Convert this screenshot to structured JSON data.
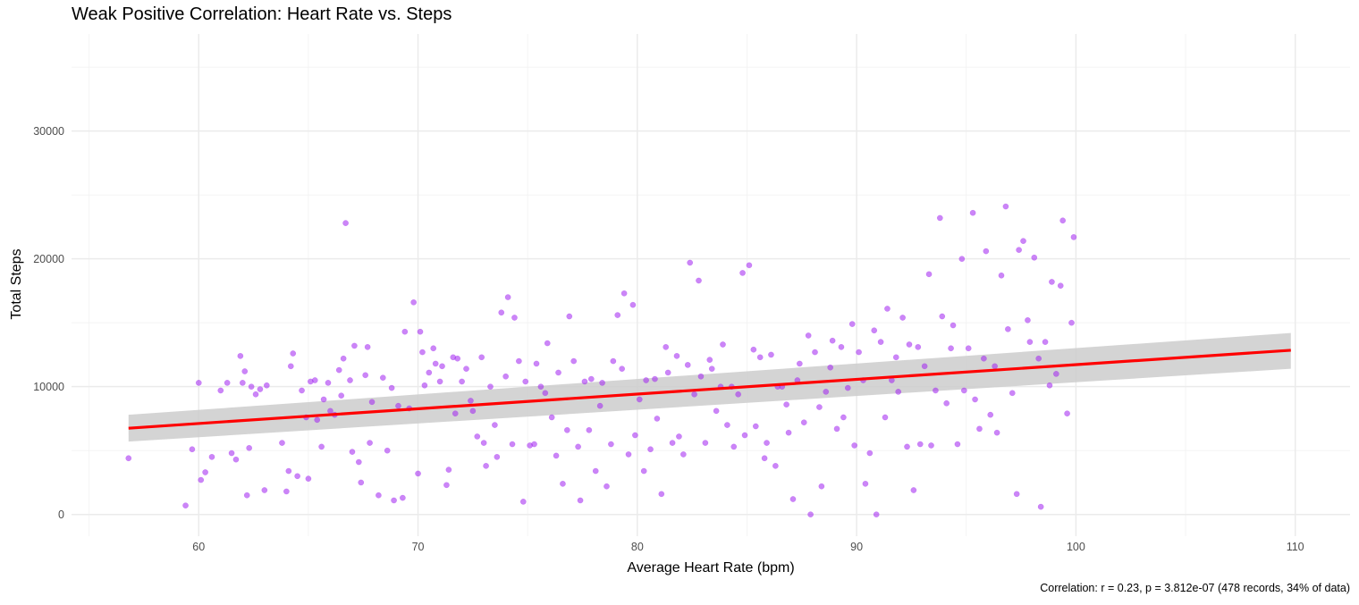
{
  "chart_data": {
    "type": "scatter",
    "title": "Weak Positive Correlation: Heart Rate vs. Steps",
    "caption": "Correlation: r = 0.23, p = 3.812e-07 (478 records, 34% of data)",
    "xlabel": "Average Heart Rate (bpm)",
    "ylabel": "Total Steps",
    "xlim": [
      54.2,
      112.5
    ],
    "ylim": [
      -1700,
      37600
    ],
    "x_ticks": [
      60,
      70,
      80,
      90,
      100,
      110
    ],
    "y_ticks": [
      0,
      10000,
      20000,
      30000
    ],
    "x_tick_labels": [
      "60",
      "70",
      "80",
      "90",
      "100",
      "110"
    ],
    "y_tick_labels": [
      "0",
      "10000",
      "20000",
      "30000"
    ],
    "grid": true,
    "point_color": "#a020f0",
    "trend_color": "#ff0000",
    "band_color": "#cccccc",
    "trend_line": {
      "x_start": 56.8,
      "y_start": 6750,
      "x_end": 109.8,
      "y_end": 12850,
      "ci_start": [
        5700,
        7800
      ],
      "ci_end": [
        11400,
        14200
      ]
    },
    "series": [
      {
        "points": [
          [
            56.8,
            4400
          ],
          [
            59.4,
            700
          ],
          [
            59.7,
            5100
          ],
          [
            60.0,
            10300
          ],
          [
            60.1,
            2700
          ],
          [
            60.3,
            3300
          ],
          [
            60.6,
            4500
          ],
          [
            61.0,
            9700
          ],
          [
            61.3,
            10300
          ],
          [
            61.5,
            4800
          ],
          [
            61.7,
            4300
          ],
          [
            61.9,
            12400
          ],
          [
            62.0,
            10300
          ],
          [
            62.1,
            11200
          ],
          [
            62.2,
            1500
          ],
          [
            62.3,
            5200
          ],
          [
            62.4,
            10000
          ],
          [
            62.6,
            9400
          ],
          [
            62.8,
            9800
          ],
          [
            63.0,
            1900
          ],
          [
            63.1,
            10100
          ],
          [
            63.8,
            5600
          ],
          [
            64.0,
            1800
          ],
          [
            64.1,
            3400
          ],
          [
            64.2,
            11600
          ],
          [
            64.3,
            12600
          ],
          [
            64.5,
            3000
          ],
          [
            64.7,
            9700
          ],
          [
            64.9,
            7600
          ],
          [
            65.0,
            2800
          ],
          [
            65.1,
            10400
          ],
          [
            65.3,
            10500
          ],
          [
            65.4,
            7400
          ],
          [
            65.6,
            5300
          ],
          [
            65.7,
            9000
          ],
          [
            65.9,
            10300
          ],
          [
            66.0,
            8100
          ],
          [
            66.2,
            7800
          ],
          [
            66.4,
            11300
          ],
          [
            66.5,
            9300
          ],
          [
            66.6,
            12200
          ],
          [
            66.7,
            22800
          ],
          [
            66.9,
            10500
          ],
          [
            67.0,
            4900
          ],
          [
            67.1,
            13200
          ],
          [
            67.3,
            4100
          ],
          [
            67.4,
            2500
          ],
          [
            67.6,
            10900
          ],
          [
            67.7,
            13100
          ],
          [
            67.8,
            5600
          ],
          [
            67.9,
            8800
          ],
          [
            68.2,
            1500
          ],
          [
            68.4,
            10700
          ],
          [
            68.6,
            5000
          ],
          [
            68.8,
            9900
          ],
          [
            68.9,
            1100
          ],
          [
            69.1,
            8500
          ],
          [
            69.3,
            1300
          ],
          [
            69.4,
            14300
          ],
          [
            69.6,
            8300
          ],
          [
            69.8,
            16600
          ],
          [
            70.0,
            3200
          ],
          [
            70.1,
            14300
          ],
          [
            70.2,
            12700
          ],
          [
            70.3,
            10100
          ],
          [
            70.5,
            11100
          ],
          [
            70.7,
            13000
          ],
          [
            70.8,
            11800
          ],
          [
            71.0,
            10400
          ],
          [
            71.1,
            11600
          ],
          [
            71.3,
            2300
          ],
          [
            71.4,
            3500
          ],
          [
            71.6,
            12300
          ],
          [
            71.7,
            7900
          ],
          [
            71.8,
            12200
          ],
          [
            72.0,
            10400
          ],
          [
            72.2,
            11400
          ],
          [
            72.4,
            8900
          ],
          [
            72.5,
            8100
          ],
          [
            72.7,
            6100
          ],
          [
            72.9,
            12300
          ],
          [
            73.0,
            5600
          ],
          [
            73.1,
            3800
          ],
          [
            73.3,
            10000
          ],
          [
            73.5,
            7000
          ],
          [
            73.6,
            4500
          ],
          [
            73.8,
            15800
          ],
          [
            74.0,
            10800
          ],
          [
            74.1,
            17000
          ],
          [
            74.3,
            5500
          ],
          [
            74.4,
            15400
          ],
          [
            74.6,
            12000
          ],
          [
            74.8,
            1000
          ],
          [
            74.9,
            10400
          ],
          [
            75.1,
            5400
          ],
          [
            75.3,
            5500
          ],
          [
            75.4,
            11800
          ],
          [
            75.6,
            10000
          ],
          [
            75.8,
            9500
          ],
          [
            75.9,
            13400
          ],
          [
            76.1,
            7600
          ],
          [
            76.3,
            4600
          ],
          [
            76.4,
            11100
          ],
          [
            76.6,
            2400
          ],
          [
            76.8,
            6600
          ],
          [
            76.9,
            15500
          ],
          [
            77.1,
            12000
          ],
          [
            77.3,
            5300
          ],
          [
            77.4,
            1100
          ],
          [
            77.6,
            10400
          ],
          [
            77.8,
            6600
          ],
          [
            77.9,
            10600
          ],
          [
            78.1,
            3400
          ],
          [
            78.3,
            8500
          ],
          [
            78.4,
            10300
          ],
          [
            78.6,
            2200
          ],
          [
            78.8,
            5500
          ],
          [
            78.9,
            12000
          ],
          [
            79.1,
            15600
          ],
          [
            79.3,
            11400
          ],
          [
            79.4,
            17300
          ],
          [
            79.6,
            4700
          ],
          [
            79.8,
            16400
          ],
          [
            79.9,
            6200
          ],
          [
            80.1,
            9000
          ],
          [
            80.3,
            3400
          ],
          [
            80.4,
            10500
          ],
          [
            80.6,
            5100
          ],
          [
            80.8,
            10600
          ],
          [
            80.9,
            7500
          ],
          [
            81.1,
            1600
          ],
          [
            81.3,
            13100
          ],
          [
            81.4,
            11100
          ],
          [
            81.6,
            5600
          ],
          [
            81.8,
            12400
          ],
          [
            81.9,
            6100
          ],
          [
            82.1,
            4700
          ],
          [
            82.3,
            11700
          ],
          [
            82.4,
            19700
          ],
          [
            82.6,
            9400
          ],
          [
            82.8,
            18300
          ],
          [
            82.9,
            10800
          ],
          [
            83.1,
            5600
          ],
          [
            83.3,
            12100
          ],
          [
            83.4,
            11400
          ],
          [
            83.6,
            8100
          ],
          [
            83.8,
            10000
          ],
          [
            83.9,
            13300
          ],
          [
            84.1,
            7000
          ],
          [
            84.3,
            10000
          ],
          [
            84.4,
            5300
          ],
          [
            84.6,
            9400
          ],
          [
            84.8,
            18900
          ],
          [
            84.9,
            6200
          ],
          [
            85.1,
            19500
          ],
          [
            85.3,
            12900
          ],
          [
            85.4,
            6900
          ],
          [
            85.6,
            12300
          ],
          [
            85.8,
            4400
          ],
          [
            85.9,
            5600
          ],
          [
            86.1,
            12500
          ],
          [
            86.3,
            3800
          ],
          [
            86.4,
            10000
          ],
          [
            86.6,
            10000
          ],
          [
            86.8,
            8600
          ],
          [
            86.9,
            6400
          ],
          [
            87.1,
            1200
          ],
          [
            87.3,
            10500
          ],
          [
            87.4,
            11800
          ],
          [
            87.6,
            7200
          ],
          [
            87.8,
            14000
          ],
          [
            87.9,
            0
          ],
          [
            88.1,
            12700
          ],
          [
            88.3,
            8400
          ],
          [
            88.4,
            2200
          ],
          [
            88.6,
            9600
          ],
          [
            88.8,
            11500
          ],
          [
            88.9,
            13600
          ],
          [
            89.1,
            6700
          ],
          [
            89.3,
            13100
          ],
          [
            89.4,
            7600
          ],
          [
            89.6,
            9900
          ],
          [
            89.8,
            14900
          ],
          [
            89.9,
            5400
          ],
          [
            90.1,
            12700
          ],
          [
            90.3,
            10500
          ],
          [
            90.4,
            2400
          ],
          [
            90.6,
            4800
          ],
          [
            90.8,
            14400
          ],
          [
            90.9,
            0
          ],
          [
            91.1,
            13500
          ],
          [
            91.3,
            7600
          ],
          [
            91.4,
            16100
          ],
          [
            91.6,
            10500
          ],
          [
            91.8,
            12300
          ],
          [
            91.9,
            9600
          ],
          [
            92.1,
            15400
          ],
          [
            92.3,
            5300
          ],
          [
            92.4,
            13300
          ],
          [
            92.6,
            1900
          ],
          [
            92.8,
            13100
          ],
          [
            92.9,
            5500
          ],
          [
            93.1,
            11600
          ],
          [
            93.3,
            18800
          ],
          [
            93.4,
            5400
          ],
          [
            93.6,
            9700
          ],
          [
            93.8,
            23200
          ],
          [
            93.9,
            15500
          ],
          [
            94.1,
            8700
          ],
          [
            94.3,
            13000
          ],
          [
            94.4,
            14800
          ],
          [
            94.6,
            5500
          ],
          [
            94.8,
            20000
          ],
          [
            94.9,
            9700
          ],
          [
            95.1,
            13000
          ],
          [
            95.3,
            23600
          ],
          [
            95.4,
            9000
          ],
          [
            95.6,
            6700
          ],
          [
            95.8,
            12200
          ],
          [
            95.9,
            20600
          ],
          [
            96.1,
            7800
          ],
          [
            96.3,
            11600
          ],
          [
            96.4,
            6400
          ],
          [
            96.6,
            18700
          ],
          [
            96.8,
            24100
          ],
          [
            96.9,
            14500
          ],
          [
            97.1,
            9500
          ],
          [
            97.3,
            1600
          ],
          [
            97.4,
            20700
          ],
          [
            97.6,
            21400
          ],
          [
            97.8,
            15200
          ],
          [
            97.9,
            13500
          ],
          [
            98.1,
            20100
          ],
          [
            98.3,
            12200
          ],
          [
            98.4,
            600
          ],
          [
            98.6,
            13500
          ],
          [
            98.8,
            10100
          ],
          [
            98.9,
            18200
          ],
          [
            99.1,
            11000
          ],
          [
            99.3,
            17900
          ],
          [
            99.4,
            23000
          ],
          [
            99.6,
            7900
          ],
          [
            99.8,
            15000
          ],
          [
            99.9,
            21700
          ]
        ]
      }
    ]
  }
}
